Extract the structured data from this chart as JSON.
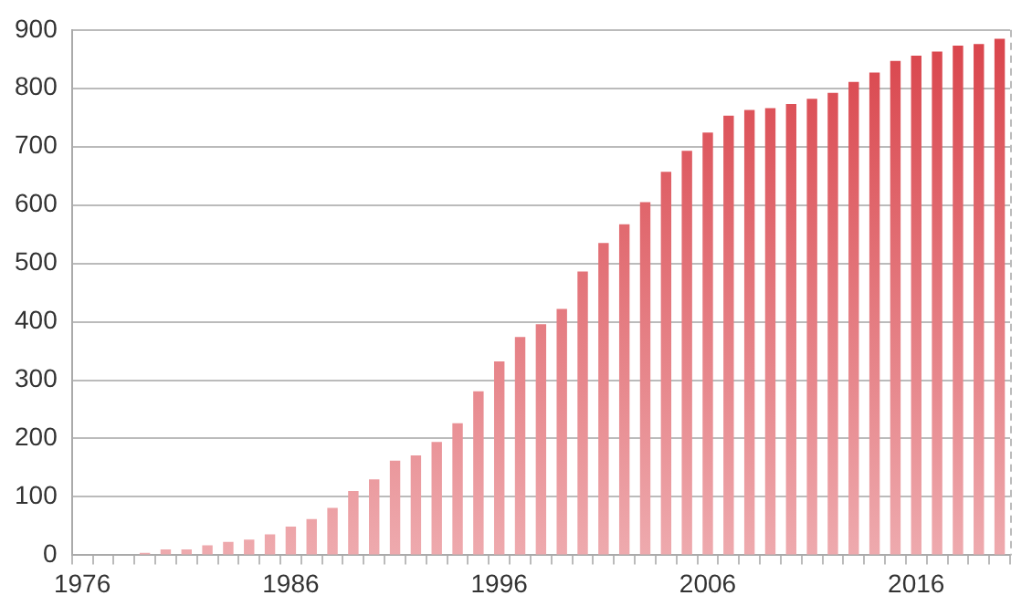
{
  "chart_data": {
    "type": "bar",
    "categories": [
      "1976",
      null,
      null,
      null,
      null,
      null,
      null,
      null,
      null,
      null,
      "1986",
      null,
      null,
      null,
      null,
      null,
      null,
      null,
      null,
      null,
      "1996",
      null,
      null,
      null,
      null,
      null,
      null,
      null,
      null,
      null,
      "2006",
      null,
      null,
      null,
      null,
      null,
      null,
      null,
      null,
      null,
      "2016",
      null,
      null,
      null,
      null
    ],
    "values": [
      0,
      0,
      0,
      4,
      10,
      10,
      17,
      23,
      27,
      36,
      49,
      62,
      81,
      110,
      130,
      162,
      171,
      194,
      226,
      281,
      332,
      374,
      396,
      422,
      486,
      535,
      567,
      605,
      657,
      693,
      724,
      753,
      763,
      766,
      773,
      782,
      792,
      811,
      827,
      847,
      856,
      863,
      873,
      876,
      885
    ],
    "color": "#d9434a",
    "ylim": [
      0,
      900
    ],
    "yticks": [
      0,
      100,
      200,
      300,
      400,
      500,
      600,
      700,
      800,
      900
    ],
    "grid": "y"
  }
}
